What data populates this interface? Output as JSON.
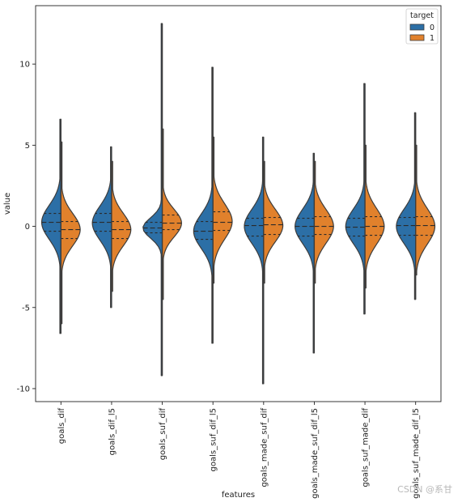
{
  "chart_data": {
    "type": "violin",
    "xlabel": "features",
    "ylabel": "value",
    "ylim": [
      -10.8,
      13.6
    ],
    "yticks": [
      -10,
      -5,
      0,
      5,
      10
    ],
    "categories": [
      "goals_dif",
      "goals_dif_l5",
      "goals_suf_dif",
      "goals_suf_dif_l5",
      "goals_made_suf_dif",
      "goals_made_suf_dif_l5",
      "goals_suf_made_dif",
      "goals_suf_made_dif_l5"
    ],
    "legend": {
      "title": "target",
      "position": "top-right"
    },
    "series": [
      {
        "name": "0",
        "color": "#2c6fa6",
        "stats": [
          {
            "min": -6.6,
            "max": 6.6,
            "q1": -0.3,
            "median": 0.25,
            "q3": 0.8,
            "peak": 0.25
          },
          {
            "min": -5.0,
            "max": 4.9,
            "q1": -0.3,
            "median": 0.25,
            "q3": 0.8,
            "peak": 0.2
          },
          {
            "min": -9.2,
            "max": 12.5,
            "q1": -0.4,
            "median": -0.1,
            "q3": 0.25,
            "peak": -0.1
          },
          {
            "min": -7.2,
            "max": 9.8,
            "q1": -0.8,
            "median": -0.3,
            "q3": 0.3,
            "peak": -0.3
          },
          {
            "min": -9.7,
            "max": 5.5,
            "q1": -0.6,
            "median": 0.05,
            "q3": 0.5,
            "peak": 0.0
          },
          {
            "min": -7.8,
            "max": 4.5,
            "q1": -0.6,
            "median": 0.0,
            "q3": 0.5,
            "peak": 0.0
          },
          {
            "min": -5.4,
            "max": 8.8,
            "q1": -0.6,
            "median": -0.05,
            "q3": 0.5,
            "peak": 0.0
          },
          {
            "min": -4.5,
            "max": 7.0,
            "q1": -0.55,
            "median": 0.05,
            "q3": 0.55,
            "peak": 0.0
          }
        ]
      },
      {
        "name": "1",
        "color": "#e1812c",
        "stats": [
          {
            "min": -6.0,
            "max": 5.2,
            "q1": -0.75,
            "median": -0.2,
            "q3": 0.3,
            "peak": -0.2
          },
          {
            "min": -4.0,
            "max": 4.0,
            "q1": -0.75,
            "median": -0.2,
            "q3": 0.3,
            "peak": -0.2
          },
          {
            "min": -4.5,
            "max": 6.0,
            "q1": -0.2,
            "median": 0.2,
            "q3": 0.7,
            "peak": 0.2
          },
          {
            "min": -3.5,
            "max": 5.5,
            "q1": -0.25,
            "median": 0.25,
            "q3": 0.9,
            "peak": 0.3
          },
          {
            "min": -3.5,
            "max": 4.0,
            "q1": -0.5,
            "median": 0.1,
            "q3": 0.55,
            "peak": 0.05
          },
          {
            "min": -3.5,
            "max": 4.0,
            "q1": -0.5,
            "median": 0.0,
            "q3": 0.6,
            "peak": 0.0
          },
          {
            "min": -3.8,
            "max": 5.0,
            "q1": -0.55,
            "median": 0.0,
            "q3": 0.6,
            "peak": 0.0
          },
          {
            "min": -3.0,
            "max": 5.0,
            "q1": -0.55,
            "median": 0.05,
            "q3": 0.6,
            "peak": 0.0
          }
        ]
      }
    ],
    "grid": false
  },
  "watermark": "CSDN @系甘"
}
